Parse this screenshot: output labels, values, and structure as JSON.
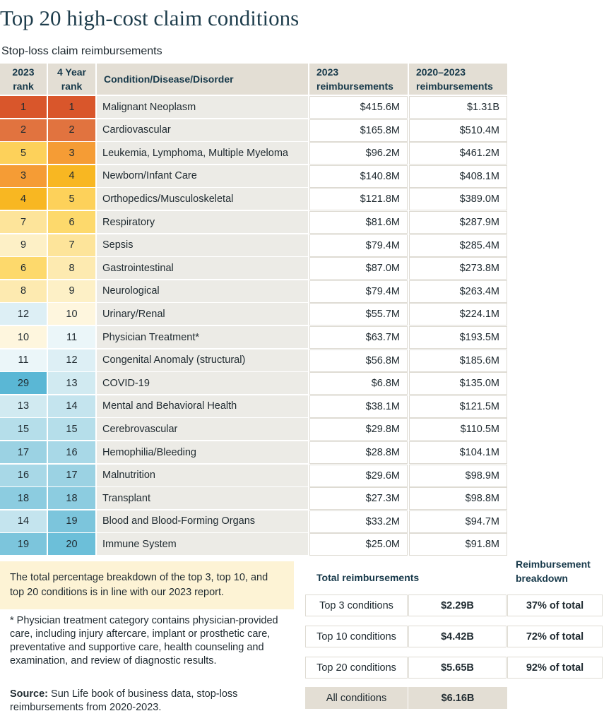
{
  "header": {
    "title": "Top 20 high-cost claim conditions",
    "subtitle": "Stop-loss claim reimbursements"
  },
  "table": {
    "columns": [
      "2023 rank",
      "4 Year rank",
      "Condition/Disease/Disorder",
      "2023 reimbursements",
      "2020–2023 reimbursements"
    ],
    "rows": [
      {
        "rank_2023": "1",
        "rank_4yr": "1",
        "condition": "Malignant Neoplasm",
        "r2023": "$415.6M",
        "r4yr": "$1.31B",
        "color_2023": "#d9562b",
        "color_4yr": "#d9562b"
      },
      {
        "rank_2023": "2",
        "rank_4yr": "2",
        "condition": "Cardiovascular",
        "r2023": "$165.8M",
        "r4yr": "$510.4M",
        "color_2023": "#e1733f",
        "color_4yr": "#e1733f"
      },
      {
        "rank_2023": "5",
        "rank_4yr": "3",
        "condition": "Leukemia, Lymphoma, Multiple Myeloma",
        "r2023": "$96.2M",
        "r4yr": "$461.2M",
        "color_2023": "#fdd15a",
        "color_4yr": "#f59c35"
      },
      {
        "rank_2023": "3",
        "rank_4yr": "4",
        "condition": "Newborn/Infant Care",
        "r2023": "$140.8M",
        "r4yr": "$408.1M",
        "color_2023": "#f59c35",
        "color_4yr": "#f8b722"
      },
      {
        "rank_2023": "4",
        "rank_4yr": "5",
        "condition": "Orthopedics/Musculoskeletal",
        "r2023": "$121.8M",
        "r4yr": "$389.0M",
        "color_2023": "#f8b722",
        "color_4yr": "#fdd15a"
      },
      {
        "rank_2023": "7",
        "rank_4yr": "6",
        "condition": "Respiratory",
        "r2023": "$81.6M",
        "r4yr": "$287.9M",
        "color_2023": "#fde49a",
        "color_4yr": "#fdd96c"
      },
      {
        "rank_2023": "9",
        "rank_4yr": "7",
        "condition": "Sepsis",
        "r2023": "$79.4M",
        "r4yr": "$285.4M",
        "color_2023": "#fdf0c6",
        "color_4yr": "#fde49a"
      },
      {
        "rank_2023": "6",
        "rank_4yr": "8",
        "condition": "Gastrointestinal",
        "r2023": "$87.0M",
        "r4yr": "$273.8M",
        "color_2023": "#fdd96c",
        "color_4yr": "#fdeab0"
      },
      {
        "rank_2023": "8",
        "rank_4yr": "9",
        "condition": "Neurological",
        "r2023": "$79.4M",
        "r4yr": "$263.4M",
        "color_2023": "#fdeab0",
        "color_4yr": "#fdf0c6"
      },
      {
        "rank_2023": "12",
        "rank_4yr": "10",
        "condition": "Urinary/Renal",
        "r2023": "$55.7M",
        "r4yr": "$224.1M",
        "color_2023": "#ddeff5",
        "color_4yr": "#fef6de"
      },
      {
        "rank_2023": "10",
        "rank_4yr": "11",
        "condition": "Physician Treatment*",
        "r2023": "$63.7M",
        "r4yr": "$193.5M",
        "color_2023": "#fef6de",
        "color_4yr": "#ebf6f9"
      },
      {
        "rank_2023": "11",
        "rank_4yr": "12",
        "condition": "Congenital Anomaly (structural)",
        "r2023": "$56.8M",
        "r4yr": "$185.6M",
        "color_2023": "#ebf6f9",
        "color_4yr": "#ddeff5"
      },
      {
        "rank_2023": "29",
        "rank_4yr": "13",
        "condition": "COVID-19",
        "r2023": "$6.8M",
        "r4yr": "$135.0M",
        "color_2023": "#5ab7d5",
        "color_4yr": "#d1eaf1"
      },
      {
        "rank_2023": "13",
        "rank_4yr": "14",
        "condition": "Mental and Behavioral Health",
        "r2023": "$38.1M",
        "r4yr": "$121.5M",
        "color_2023": "#d1eaf1",
        "color_4yr": "#c4e4ee"
      },
      {
        "rank_2023": "15",
        "rank_4yr": "15",
        "condition": "Cerebrovascular",
        "r2023": "$29.8M",
        "r4yr": "$110.5M",
        "color_2023": "#b5deea",
        "color_4yr": "#b5deea"
      },
      {
        "rank_2023": "17",
        "rank_4yr": "16",
        "condition": "Hemophilia/Bleeding",
        "r2023": "$28.8M",
        "r4yr": "$104.1M",
        "color_2023": "#9bd2e3",
        "color_4yr": "#a8d8e7"
      },
      {
        "rank_2023": "16",
        "rank_4yr": "17",
        "condition": "Malnutrition",
        "r2023": "$29.6M",
        "r4yr": "$98.9M",
        "color_2023": "#a8d8e7",
        "color_4yr": "#9bd2e3"
      },
      {
        "rank_2023": "18",
        "rank_4yr": "18",
        "condition": "Transplant",
        "r2023": "$27.3M",
        "r4yr": "$98.8M",
        "color_2023": "#8ccce0",
        "color_4yr": "#8ccce0"
      },
      {
        "rank_2023": "14",
        "rank_4yr": "19",
        "condition": "Blood and Blood-Forming Organs",
        "r2023": "$33.2M",
        "r4yr": "$94.7M",
        "color_2023": "#c4e4ee",
        "color_4yr": "#7cc5dc"
      },
      {
        "rank_2023": "19",
        "rank_4yr": "20",
        "condition": "Immune System",
        "r2023": "$25.0M",
        "r4yr": "$91.8M",
        "color_2023": "#7cc5dc",
        "color_4yr": "#6cbfd9"
      }
    ]
  },
  "note": "The total percentage breakdown of the top 3, top 10, and top 20 conditions is in line with our 2023 report.",
  "footnote": "* Physician treatment category contains physician-provided care, including injury aftercare, implant or prosthetic care, preventative and supportive care, health counseling and examination, and review of diagnostic results.",
  "source": {
    "label": "Source:",
    "text": "Sun Life book of business data, stop-loss reimbursements from 2020-2023."
  },
  "summary": {
    "total_header": "Total reimbursements",
    "breakdown_header": "Reimbursement breakdown",
    "rows": [
      {
        "label": "Top 3 conditions",
        "total": "$2.29B",
        "share": "37% of total"
      },
      {
        "label": "Top 10 conditions",
        "total": "$4.42B",
        "share": "72% of total"
      },
      {
        "label": "Top 20 conditions",
        "total": "$5.65B",
        "share": "92% of total"
      }
    ],
    "all": {
      "label": "All conditions",
      "total": "$6.16B"
    }
  }
}
